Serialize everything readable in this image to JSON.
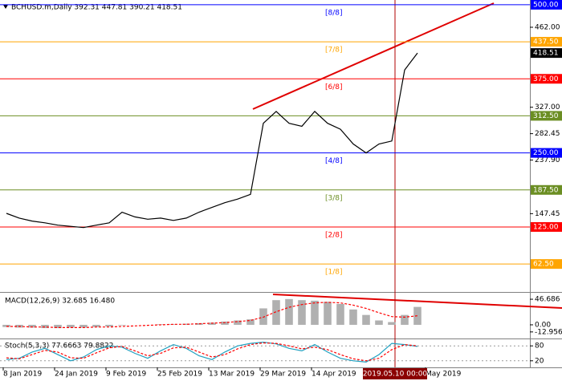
{
  "chart_data": [
    {
      "type": "line",
      "title": "BCHUSD.m,Daily  392.31 447.81 390.21 418.51",
      "x": [
        8,
        12,
        16,
        20,
        24,
        28,
        32,
        36,
        40,
        44,
        48,
        52,
        56,
        60,
        64,
        68,
        72,
        76,
        80,
        84,
        88,
        92,
        96,
        100,
        104,
        108,
        112,
        116,
        120,
        124,
        128,
        132,
        136
      ],
      "xlim": [
        6,
        171
      ],
      "ylim": [
        18,
        508
      ],
      "series": [
        {
          "color": "#000000",
          "values": [
            148,
            140,
            135,
            132,
            128,
            126,
            124,
            128,
            132,
            150,
            142,
            138,
            140,
            136,
            140,
            150,
            158,
            166,
            172,
            180,
            300,
            320,
            300,
            295,
            320,
            300,
            290,
            265,
            250,
            265,
            270,
            390,
            418.51
          ]
        }
      ],
      "yticks": [
        {
          "value": 462,
          "label": "462.00"
        },
        {
          "value": 327,
          "label": "327.00"
        },
        {
          "value": 282.45,
          "label": "282.45"
        },
        {
          "value": 237.9,
          "label": "237.90"
        },
        {
          "value": 147.45,
          "label": "147.45"
        }
      ],
      "last_price": {
        "value": 418.51,
        "label": "418.51"
      },
      "levels": [
        {
          "value": 500,
          "label": "500.00",
          "name": "[8/8]",
          "color": "#0000ff"
        },
        {
          "value": 437.5,
          "label": "437.50",
          "name": "[7/8]",
          "color": "#ffa500"
        },
        {
          "value": 375,
          "label": "375.00",
          "name": "[6/8]",
          "color": "#ff0000"
        },
        {
          "value": 312.5,
          "label": "312.50",
          "color": "#6b8e23"
        },
        {
          "value": 250,
          "label": "250.00",
          "name": "[4/8]",
          "color": "#0000ff"
        },
        {
          "value": 187.5,
          "label": "187.50",
          "name": "[3/8]",
          "color": "#6b8e23"
        },
        {
          "value": 125,
          "label": "125.00",
          "name": "[2/8]",
          "color": "#ff0000"
        },
        {
          "value": 62.5,
          "label": "62.50",
          "name": "[1/8]",
          "color": "#ffa500"
        }
      ]
    },
    {
      "type": "bar",
      "title": "MACD(12,26,9) 32.685 16.480",
      "x": [
        8,
        12,
        16,
        20,
        24,
        28,
        32,
        36,
        40,
        44,
        48,
        52,
        56,
        60,
        64,
        68,
        72,
        76,
        80,
        84,
        88,
        92,
        96,
        100,
        104,
        108,
        112,
        116,
        120,
        124,
        128,
        132,
        136
      ],
      "xlim": [
        6,
        171
      ],
      "ylim": [
        -22,
        57
      ],
      "yticks": [
        {
          "value": 46.686,
          "label": "46.686"
        },
        {
          "value": 0,
          "label": "0.00"
        },
        {
          "value": -12.956,
          "label": "-12.956"
        }
      ],
      "series": [
        {
          "type": "bar",
          "color": "#b0b0b0",
          "values": [
            -4,
            -5,
            -5,
            -6,
            -6,
            -5,
            -5,
            -4,
            -3,
            -1,
            0,
            0,
            1,
            1,
            2,
            3,
            4,
            6,
            8,
            10,
            30,
            45,
            47,
            45,
            44,
            42,
            38,
            28,
            18,
            8,
            5,
            18,
            32.685
          ]
        },
        {
          "type": "line",
          "color": "#ff0000",
          "values": [
            -3,
            -3,
            -4,
            -4,
            -5,
            -5,
            -5,
            -4,
            -4,
            -3,
            -2,
            -1,
            0,
            1,
            1,
            2,
            3,
            4,
            6,
            8,
            14,
            24,
            32,
            37,
            40,
            41,
            40,
            36,
            30,
            22,
            15,
            14,
            16.48
          ]
        }
      ]
    },
    {
      "type": "line",
      "title": "Stoch(5,3,3) 77.6663 79.8822",
      "x": [
        8,
        12,
        16,
        20,
        24,
        28,
        32,
        36,
        40,
        44,
        48,
        52,
        56,
        60,
        64,
        68,
        72,
        76,
        80,
        84,
        88,
        92,
        96,
        100,
        104,
        108,
        112,
        116,
        120,
        124,
        128,
        132,
        136
      ],
      "xlim": [
        6,
        171
      ],
      "ylim": [
        0,
        100
      ],
      "yticks": [
        80,
        20
      ],
      "series": [
        {
          "color": "#20a0c0",
          "values": [
            25,
            30,
            55,
            70,
            45,
            20,
            35,
            65,
            80,
            75,
            50,
            30,
            60,
            85,
            70,
            40,
            25,
            55,
            80,
            90,
            95,
            88,
            70,
            60,
            85,
            55,
            30,
            20,
            15,
            45,
            90,
            85,
            77.6663
          ]
        },
        {
          "color": "#ff0000",
          "values": [
            32,
            28,
            45,
            62,
            55,
            32,
            30,
            52,
            72,
            78,
            60,
            40,
            50,
            72,
            75,
            55,
            35,
            45,
            68,
            85,
            92,
            90,
            80,
            68,
            75,
            65,
            45,
            28,
            20,
            30,
            65,
            85,
            79.8822
          ]
        }
      ],
      "xticks": [
        {
          "value": 7,
          "label": "8 Jan 2019"
        },
        {
          "value": 23,
          "label": "24 Jan 2019"
        },
        {
          "value": 39,
          "label": "9 Feb 2019"
        },
        {
          "value": 55,
          "label": "25 Feb 2019"
        },
        {
          "value": 71,
          "label": "13 Mar 2019"
        },
        {
          "value": 87,
          "label": "29 Mar 2019"
        },
        {
          "value": 103,
          "label": "14 Apr 2019"
        },
        {
          "value": 138.5,
          "label": "May 2019"
        }
      ],
      "cursor": {
        "value": 129,
        "label": "2019.05.10 00:00"
      }
    }
  ]
}
